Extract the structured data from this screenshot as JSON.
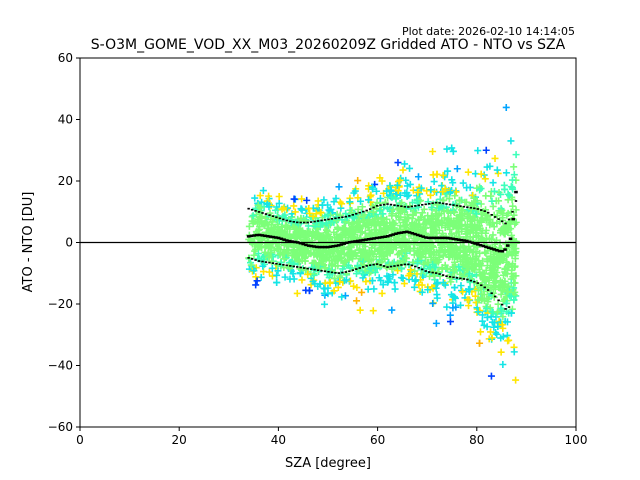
{
  "chart_data": {
    "type": "scatter",
    "plot_date": "Plot date: 2026-02-10 14:14:05",
    "title": "S-O3M_GOME_VOD_XX_M03_20260209Z Gridded ATO - NTO vs SZA",
    "xlabel": "SZA [degree]",
    "ylabel": "ATO - NTO [DU]",
    "xlim": [
      0,
      100
    ],
    "ylim": [
      -60,
      60
    ],
    "x_ticks": [
      "0",
      "20",
      "40",
      "60",
      "80",
      "100"
    ],
    "y_ticks": [
      "60",
      "40",
      "20",
      "0",
      "−20",
      "−40",
      "−60"
    ],
    "zero_line": 0,
    "marker": "+",
    "point_colors": [
      "#7cff79",
      "#3dffba",
      "#14e5e6",
      "#ffe600",
      "#ffb300",
      "#00a4ff",
      "#0040ff"
    ],
    "sza_range": [
      34,
      88
    ],
    "mean_curve": [
      [
        34,
        2
      ],
      [
        36,
        2.5
      ],
      [
        38,
        2
      ],
      [
        40,
        1.5
      ],
      [
        42,
        0.5
      ],
      [
        44,
        0
      ],
      [
        46,
        -1
      ],
      [
        48,
        -1.5
      ],
      [
        50,
        -1.5
      ],
      [
        52,
        -1
      ],
      [
        54,
        0
      ],
      [
        56,
        0.5
      ],
      [
        58,
        1
      ],
      [
        60,
        1.5
      ],
      [
        62,
        2
      ],
      [
        64,
        3
      ],
      [
        66,
        3.5
      ],
      [
        68,
        2.5
      ],
      [
        70,
        1.5
      ],
      [
        72,
        1.5
      ],
      [
        74,
        1.5
      ],
      [
        76,
        1
      ],
      [
        78,
        0.5
      ],
      [
        80,
        -0.5
      ],
      [
        82,
        -1.5
      ],
      [
        84,
        -2.5
      ],
      [
        85,
        -3
      ],
      [
        86,
        -2
      ],
      [
        87,
        2
      ],
      [
        88,
        18
      ]
    ],
    "upper_curve": [
      [
        34,
        11
      ],
      [
        36,
        10
      ],
      [
        38,
        9
      ],
      [
        40,
        8
      ],
      [
        42,
        7
      ],
      [
        44,
        6.5
      ],
      [
        46,
        6.5
      ],
      [
        48,
        7
      ],
      [
        50,
        7.5
      ],
      [
        52,
        8
      ],
      [
        54,
        8.5
      ],
      [
        56,
        9.5
      ],
      [
        58,
        10.5
      ],
      [
        60,
        12
      ],
      [
        62,
        12.5
      ],
      [
        64,
        12
      ],
      [
        66,
        11.5
      ],
      [
        68,
        12
      ],
      [
        70,
        12.5
      ],
      [
        72,
        13
      ],
      [
        74,
        12.5
      ],
      [
        76,
        12
      ],
      [
        78,
        11.5
      ],
      [
        80,
        11
      ],
      [
        82,
        10
      ],
      [
        84,
        8
      ],
      [
        86,
        6
      ],
      [
        87,
        9
      ],
      [
        88,
        14
      ]
    ],
    "lower_curve": [
      [
        34,
        -5
      ],
      [
        36,
        -6
      ],
      [
        38,
        -6.5
      ],
      [
        40,
        -7
      ],
      [
        42,
        -7.5
      ],
      [
        44,
        -8
      ],
      [
        46,
        -8.5
      ],
      [
        48,
        -9
      ],
      [
        50,
        -9.5
      ],
      [
        52,
        -10
      ],
      [
        54,
        -9.5
      ],
      [
        56,
        -8.5
      ],
      [
        58,
        -7.5
      ],
      [
        60,
        -7
      ],
      [
        62,
        -8
      ],
      [
        64,
        -7.5
      ],
      [
        66,
        -7
      ],
      [
        68,
        -8
      ],
      [
        70,
        -9.5
      ],
      [
        72,
        -10
      ],
      [
        74,
        -11
      ],
      [
        76,
        -11.5
      ],
      [
        78,
        -12
      ],
      [
        80,
        -13
      ],
      [
        82,
        -15
      ],
      [
        84,
        -18
      ],
      [
        85,
        -20
      ],
      [
        86,
        -22
      ],
      [
        87,
        -20
      ]
    ]
  }
}
